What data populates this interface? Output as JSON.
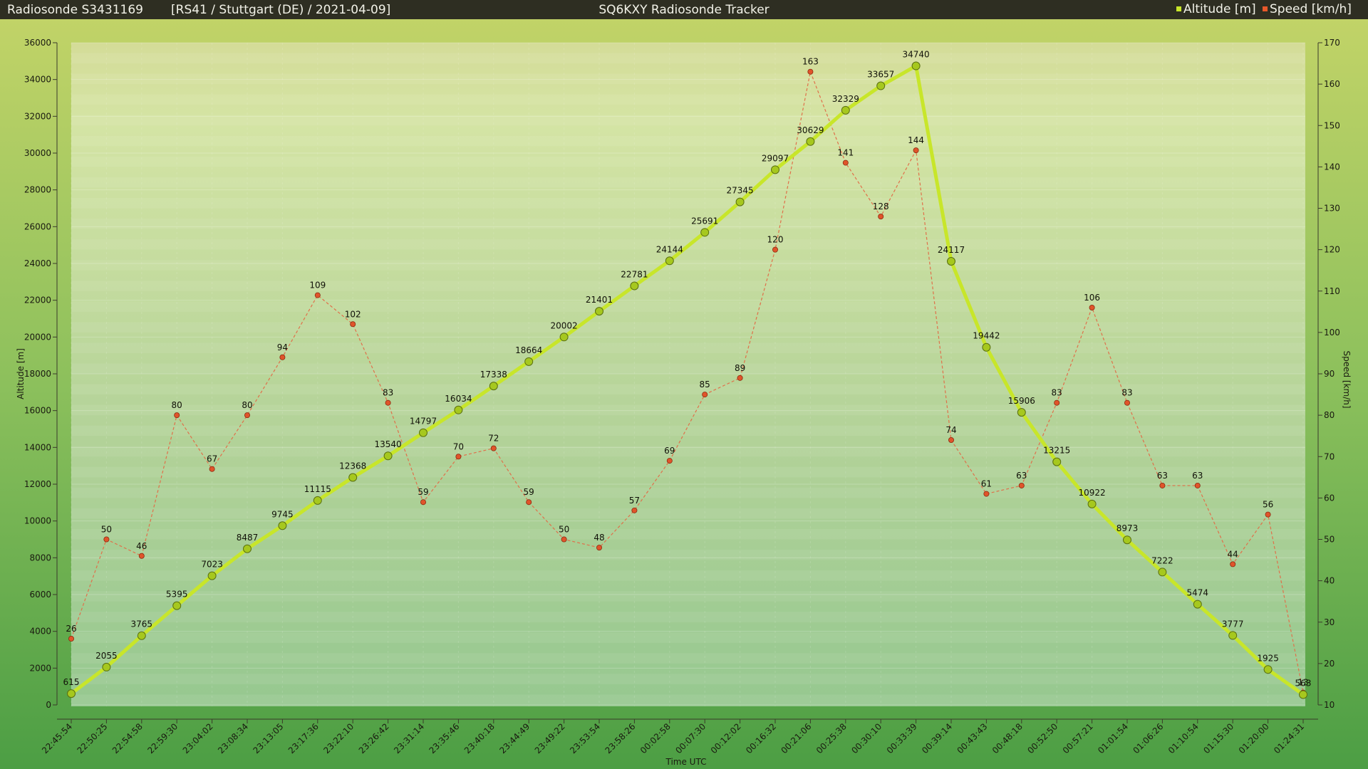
{
  "header": {
    "left_title": "Radiosonde S3431169",
    "left_subtitle": "[RS41 / Stuttgart (DE) / 2021-04-09]",
    "center_title": "SQ6KXY Radiosonde Tracker"
  },
  "legend": [
    {
      "name": "Altitude [m]",
      "color": "#c8e62a"
    },
    {
      "name": "Speed [km/h]",
      "color": "#e8582a"
    }
  ],
  "colors": {
    "altitude_line": "#c8e62a",
    "altitude_marker_fill": "#a6c81e",
    "speed_line": "#e0704a",
    "speed_marker": "#e0542a",
    "header_bg": "#2e2e22",
    "header_text": "#f2f2e8"
  },
  "chart_data": {
    "type": "line",
    "title": "SQ6KXY Radiosonde Tracker",
    "xlabel": "Time UTC",
    "ylabel_left": "Altitude [m]",
    "ylabel_right": "Speed [km/h]",
    "ylim_left": [
      0,
      36000
    ],
    "ylim_right": [
      10,
      170
    ],
    "yticks_left": [
      0,
      2000,
      4000,
      6000,
      8000,
      10000,
      12000,
      14000,
      16000,
      18000,
      20000,
      22000,
      24000,
      26000,
      28000,
      30000,
      32000,
      34000,
      36000
    ],
    "yticks_right": [
      10,
      20,
      30,
      40,
      50,
      60,
      70,
      80,
      90,
      100,
      110,
      120,
      130,
      140,
      150,
      160,
      170
    ],
    "grid": true,
    "legend_position": "top-right",
    "x": [
      "22:45:54",
      "22:50:25",
      "22:54:58",
      "22:59:30",
      "23:04:02",
      "23:08:34",
      "23:13:05",
      "23:17:36",
      "23:22:10",
      "23:26:42",
      "23:31:14",
      "23:35:46",
      "23:40:18",
      "23:44:49",
      "23:49:22",
      "23:53:54",
      "23:58:26",
      "00:02:58",
      "00:07:30",
      "00:12:02",
      "00:16:32",
      "00:21:06",
      "00:25:38",
      "00:30:10",
      "00:33:39",
      "00:39:14",
      "00:43:43",
      "00:48:18",
      "00:52:50",
      "00:57:21",
      "01:01:54",
      "01:06:26",
      "01:10:54",
      "01:15:30",
      "01:20:00",
      "01:24:31"
    ],
    "series": [
      {
        "name": "Altitude [m]",
        "axis": "left",
        "values": [
          615,
          2055,
          3765,
          5395,
          7023,
          8487,
          9745,
          11115,
          12368,
          13540,
          14797,
          16034,
          17338,
          18664,
          20002,
          21401,
          22781,
          24144,
          25691,
          27345,
          29097,
          30629,
          32329,
          33657,
          34740,
          24117,
          19442,
          15906,
          13215,
          10922,
          8973,
          7222,
          5474,
          3777,
          1925,
          563
        ]
      },
      {
        "name": "Speed [km/h]",
        "axis": "right",
        "values": [
          26,
          50,
          46,
          80,
          67,
          80,
          94,
          109,
          102,
          83,
          59,
          70,
          72,
          59,
          50,
          48,
          57,
          69,
          85,
          89,
          120,
          163,
          141,
          128,
          144,
          74,
          61,
          63,
          83,
          106,
          83,
          63,
          63,
          44,
          56,
          13
        ]
      }
    ]
  }
}
